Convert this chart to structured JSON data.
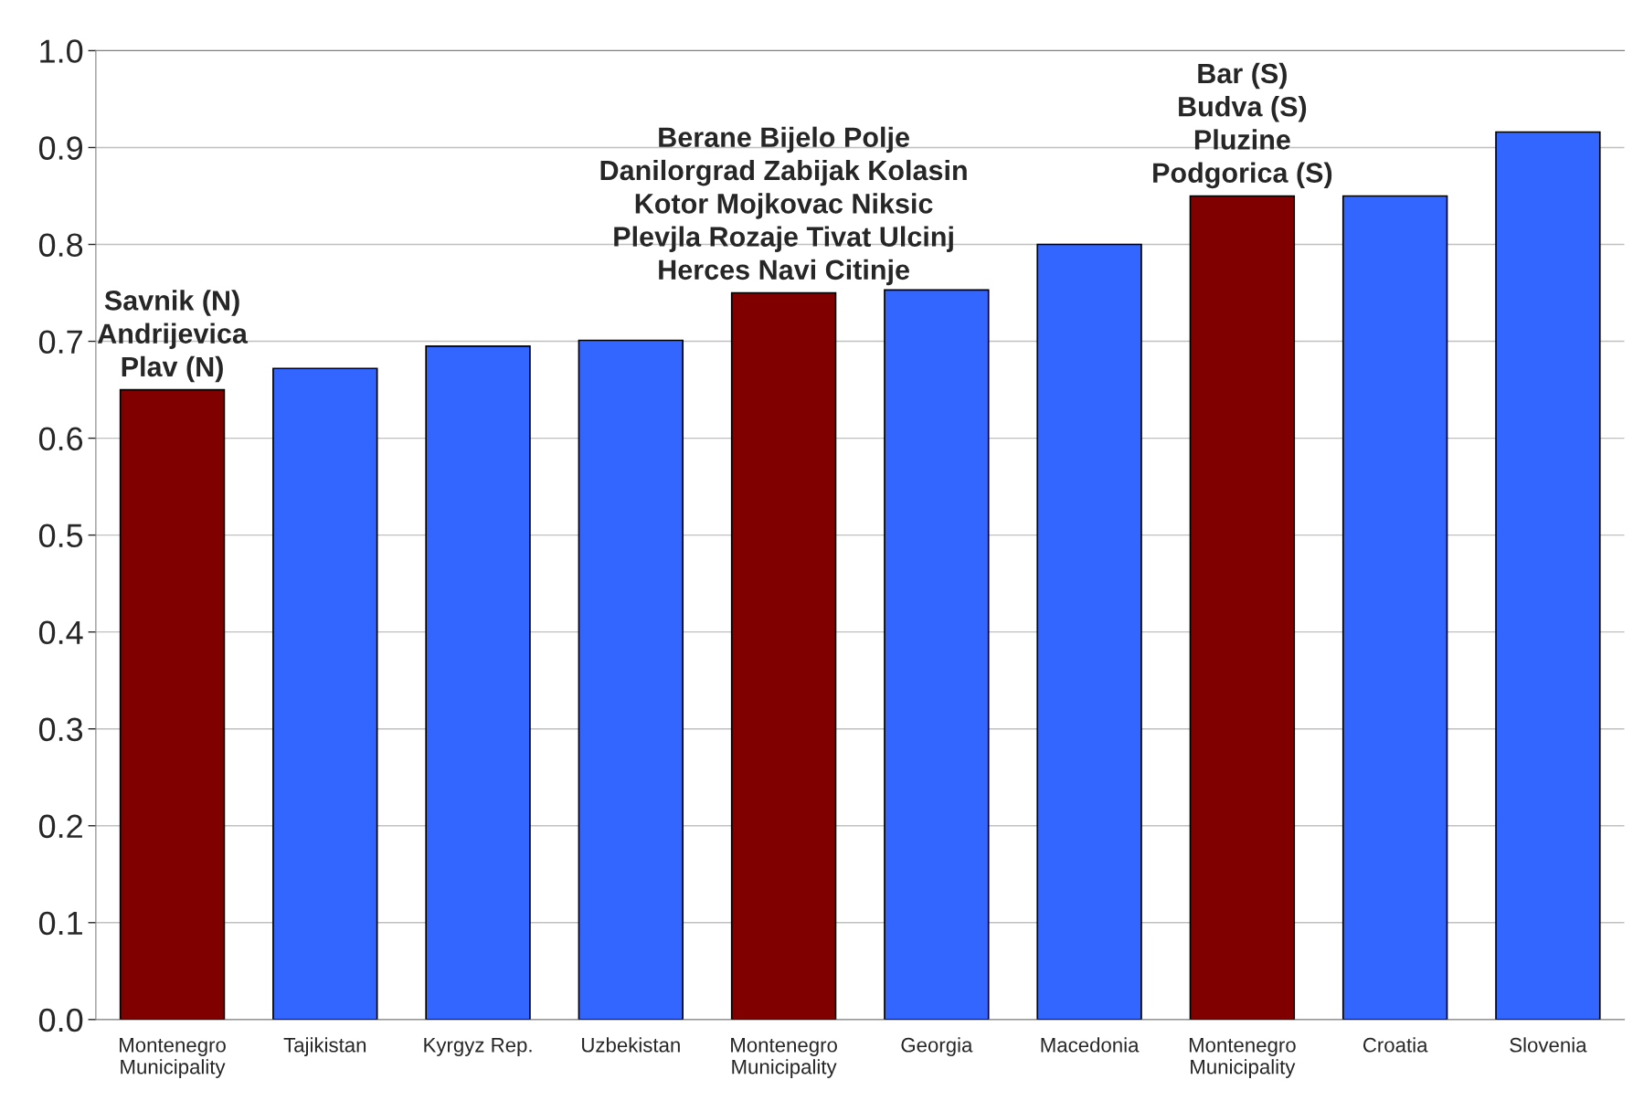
{
  "chart_data": {
    "type": "bar",
    "categories": [
      "Montenegro\nMunicipality",
      "Tajikistan",
      "Kyrgyz Rep.",
      "Uzbekistan",
      "Montenegro\nMunicipality",
      "Georgia",
      "Macedonia",
      "Montenegro\nMunicipality",
      "Croatia",
      "Slovenia"
    ],
    "values": [
      0.65,
      0.672,
      0.695,
      0.701,
      0.75,
      0.753,
      0.8,
      0.85,
      0.85,
      0.916
    ],
    "colors": [
      "#800000",
      "#3366ff",
      "#3366ff",
      "#3366ff",
      "#800000",
      "#3366ff",
      "#3366ff",
      "#800000",
      "#3366ff",
      "#3366ff"
    ],
    "ylim": [
      0,
      1
    ],
    "yticks": [
      {
        "value": 0,
        "label": "0.0"
      },
      {
        "value": 0.1,
        "label": "0.1"
      },
      {
        "value": 0.2,
        "label": "0.2"
      },
      {
        "value": 0.3,
        "label": "0.3"
      },
      {
        "value": 0.4,
        "label": "0.4"
      },
      {
        "value": 0.5,
        "label": "0.5"
      },
      {
        "value": 0.6,
        "label": "0.6"
      },
      {
        "value": 0.7,
        "label": "0.7"
      },
      {
        "value": 0.8,
        "label": "0.8"
      },
      {
        "value": 0.9,
        "label": "0.9"
      },
      {
        "value": 1,
        "label": "1.0"
      }
    ],
    "grid": "y",
    "annotations": [
      "Savnik (N)\nAndrijevica\nPlav (N)",
      "Berane Bijelo Polje\nDanilorgrad Zabijak Kolasin\nKotor Mojkovac Niksic\nPlevjla Rozaje Tivat Ulcinj\nHerces Navi Citinje",
      "Bar (S)\nBudva (S)\nPluzine\nPodgorica (S)"
    ]
  }
}
